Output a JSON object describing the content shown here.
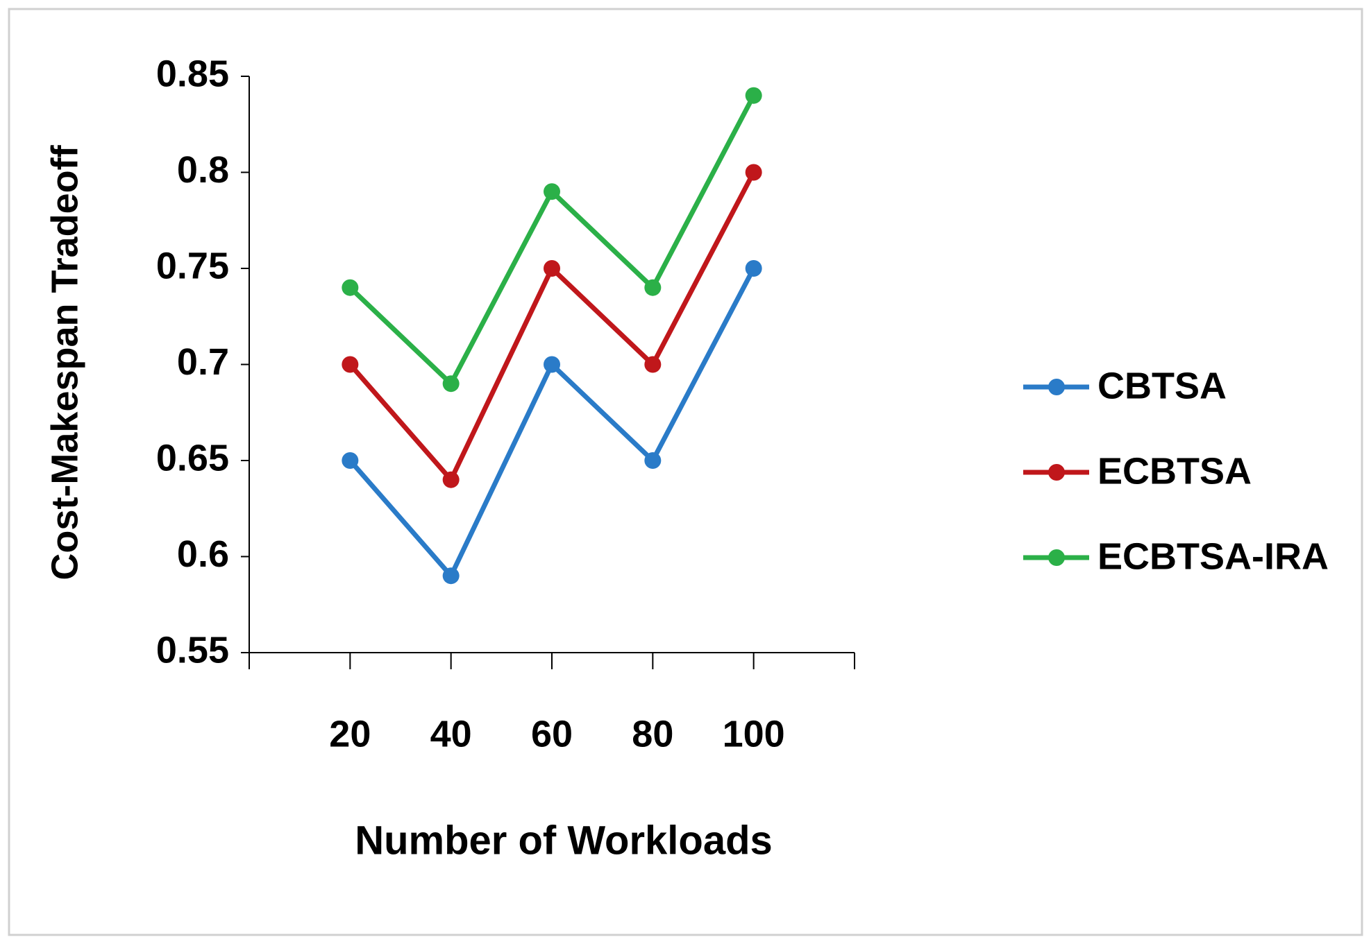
{
  "chart_data": {
    "type": "line",
    "x_label": "Number of Workloads",
    "y_label": "Cost-Makespan Tradeoff",
    "x": [
      20,
      40,
      60,
      80,
      100
    ],
    "xlim": [
      0,
      120
    ],
    "xticks": [
      20,
      40,
      60,
      80,
      100
    ],
    "ylim": [
      0.55,
      0.85
    ],
    "yticks": [
      0.55,
      0.6,
      0.65,
      0.7,
      0.75,
      0.8,
      0.85
    ],
    "grid": false,
    "legend": "right",
    "series": [
      {
        "name": "CBTSA",
        "color": "#2a7bc8",
        "values": [
          0.65,
          0.59,
          0.7,
          0.65,
          0.75
        ]
      },
      {
        "name": "ECBTSA",
        "color": "#c0171b",
        "values": [
          0.7,
          0.64,
          0.75,
          0.7,
          0.8
        ]
      },
      {
        "name": "ECBTSA-IRA",
        "color": "#2bb048",
        "values": [
          0.74,
          0.69,
          0.79,
          0.74,
          0.84
        ]
      }
    ]
  }
}
